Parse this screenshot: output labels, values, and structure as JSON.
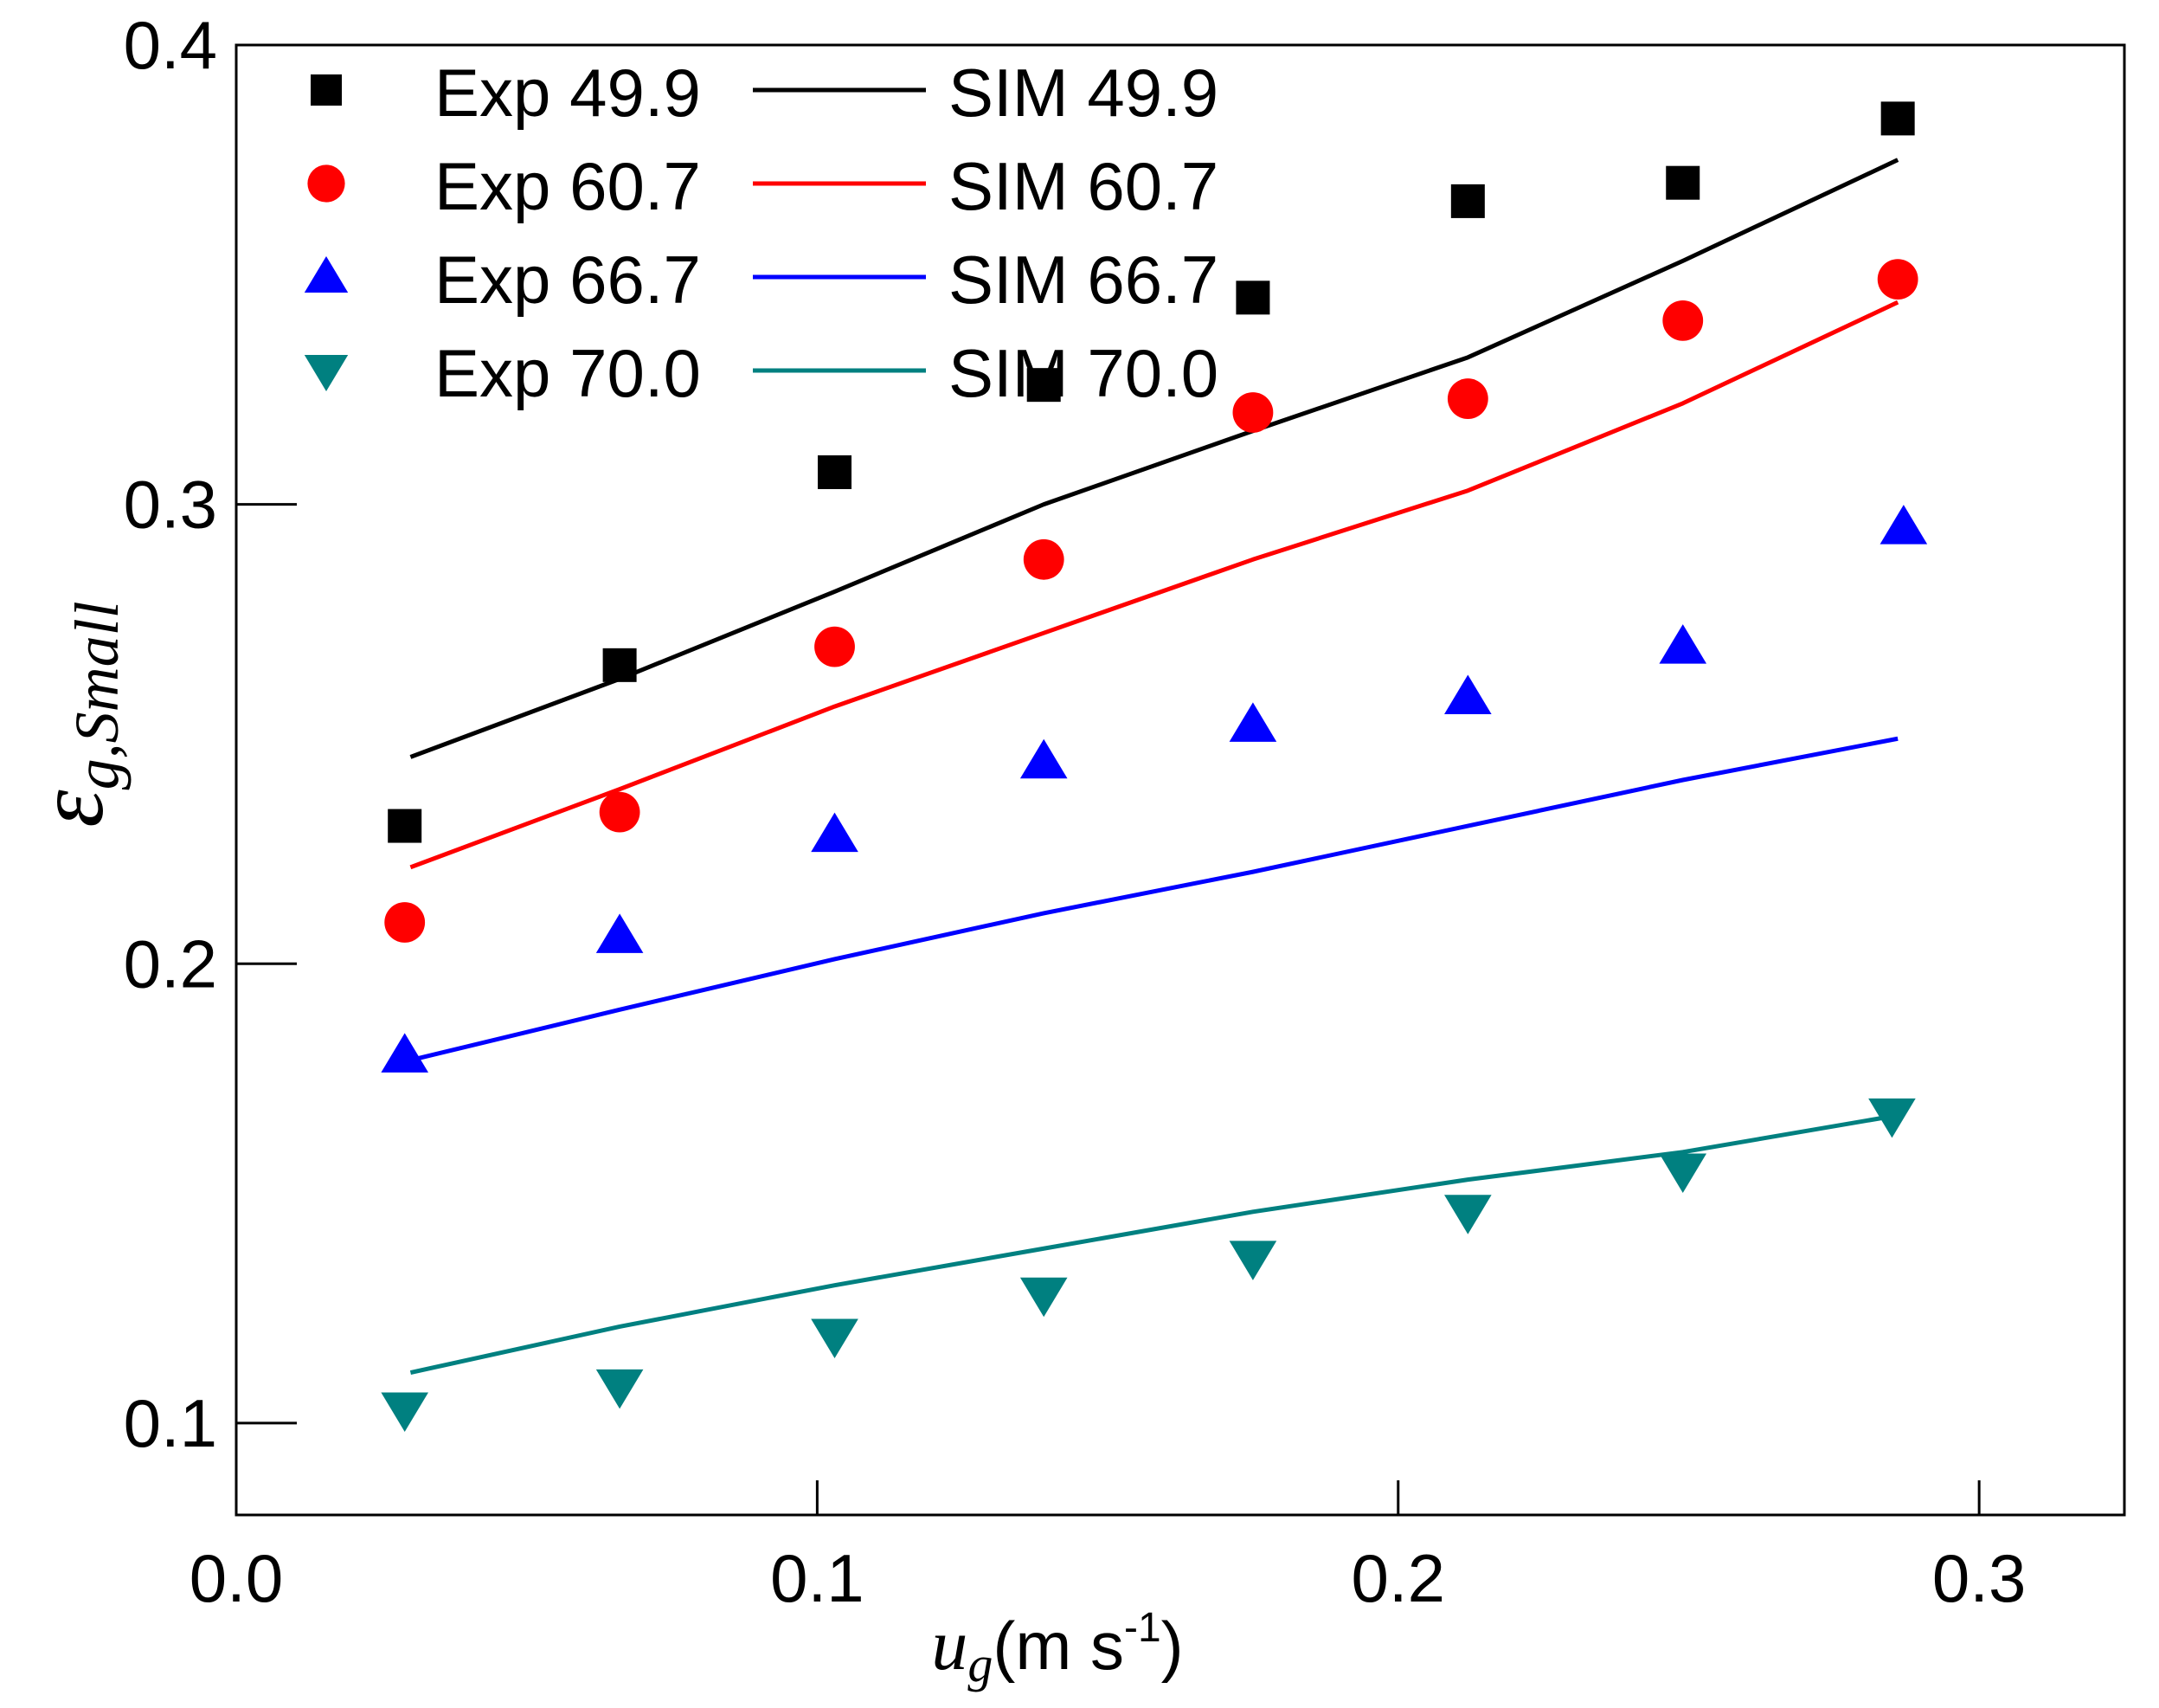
{
  "chart_data": {
    "type": "scatter",
    "title": "",
    "xlabel": {
      "main": "u",
      "sub": "g",
      "unit_prefix": "(m s",
      "unit_sup": "-1",
      "unit_suffix": ")"
    },
    "ylabel": {
      "main": "ε",
      "sub": "g,Small"
    },
    "xlim": [
      0.0,
      0.325
    ],
    "ylim": [
      0.08,
      0.4
    ],
    "xticks": [
      0.0,
      0.1,
      0.2,
      0.3
    ],
    "xtick_labels": [
      "0.0",
      "0.1",
      "0.2",
      "0.3"
    ],
    "yticks": [
      0.1,
      0.2,
      0.3,
      0.4
    ],
    "ytick_labels": [
      "0.1",
      "0.2",
      "0.3",
      "0.4"
    ],
    "grid": false,
    "legend_position": "top-left",
    "series": [
      {
        "name": "Exp 49.9",
        "kind": "markers",
        "marker": "square",
        "color": "#000000",
        "x": [
          0.029,
          0.066,
          0.103,
          0.139,
          0.175,
          0.212,
          0.249,
          0.286
        ],
        "y": [
          0.23,
          0.265,
          0.307,
          0.326,
          0.345,
          0.366,
          0.37,
          0.384
        ]
      },
      {
        "name": "SIM 49.9",
        "kind": "line",
        "color": "#000000",
        "x": [
          0.03,
          0.066,
          0.103,
          0.139,
          0.175,
          0.212,
          0.249,
          0.286
        ],
        "y": [
          0.245,
          0.262,
          0.281,
          0.3,
          0.316,
          0.332,
          0.353,
          0.375
        ]
      },
      {
        "name": "Exp 60.7",
        "kind": "markers",
        "marker": "circle",
        "color": "#ff0000",
        "x": [
          0.029,
          0.066,
          0.103,
          0.139,
          0.175,
          0.212,
          0.249,
          0.286
        ],
        "y": [
          0.209,
          0.233,
          0.269,
          0.288,
          0.32,
          0.323,
          0.34,
          0.349
        ]
      },
      {
        "name": "SIM 60.7",
        "kind": "line",
        "color": "#ff0000",
        "x": [
          0.03,
          0.066,
          0.103,
          0.139,
          0.175,
          0.212,
          0.249,
          0.286
        ],
        "y": [
          0.221,
          0.238,
          0.256,
          0.272,
          0.288,
          0.303,
          0.322,
          0.344
        ]
      },
      {
        "name": "Exp 66.7",
        "kind": "markers",
        "marker": "triangle-up",
        "color": "#0000ff",
        "x": [
          0.029,
          0.066,
          0.103,
          0.139,
          0.175,
          0.212,
          0.249,
          0.287
        ],
        "y": [
          0.18,
          0.206,
          0.228,
          0.244,
          0.252,
          0.258,
          0.269,
          0.295
        ]
      },
      {
        "name": "SIM 66.7",
        "kind": "line",
        "color": "#0000ff",
        "x": [
          0.03,
          0.066,
          0.103,
          0.139,
          0.175,
          0.212,
          0.249,
          0.286
        ],
        "y": [
          0.179,
          0.19,
          0.201,
          0.211,
          0.22,
          0.23,
          0.24,
          0.249
        ]
      },
      {
        "name": "Exp 70.0",
        "kind": "markers",
        "marker": "triangle-down",
        "color": "#008080",
        "x": [
          0.029,
          0.066,
          0.103,
          0.139,
          0.175,
          0.212,
          0.249,
          0.285
        ],
        "y": [
          0.103,
          0.108,
          0.119,
          0.128,
          0.136,
          0.146,
          0.155,
          0.167
        ]
      },
      {
        "name": "SIM 70.0",
        "kind": "line",
        "color": "#008080",
        "x": [
          0.03,
          0.066,
          0.103,
          0.139,
          0.175,
          0.212,
          0.249,
          0.286
        ],
        "y": [
          0.111,
          0.121,
          0.13,
          0.138,
          0.146,
          0.153,
          0.159,
          0.167
        ]
      }
    ],
    "legend": [
      {
        "marker_series": "Exp 49.9",
        "line_series": "SIM 49.9"
      },
      {
        "marker_series": "Exp 60.7",
        "line_series": "SIM 60.7"
      },
      {
        "marker_series": "Exp 66.7",
        "line_series": "SIM 66.7"
      },
      {
        "marker_series": "Exp 70.0",
        "line_series": "SIM 70.0"
      }
    ]
  }
}
